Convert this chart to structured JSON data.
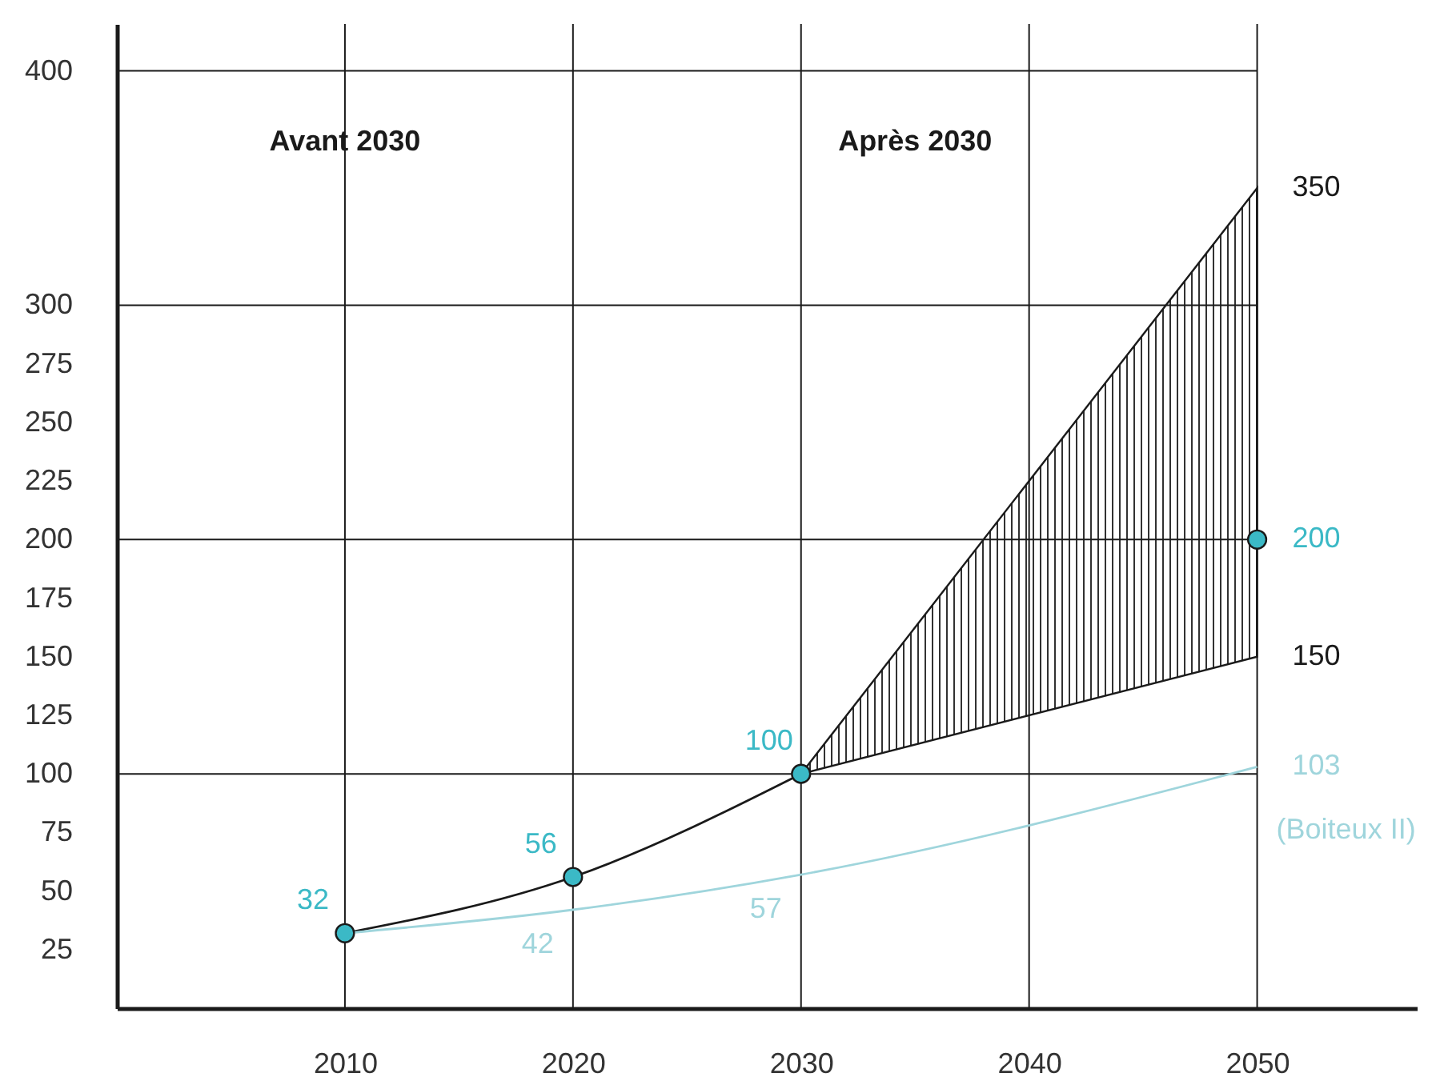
{
  "chart_data": {
    "type": "line",
    "xlim": [
      2000,
      2057
    ],
    "ylim": [
      0,
      420
    ],
    "xticks": [
      2010,
      2020,
      2030,
      2040,
      2050
    ],
    "yticks": [
      25,
      50,
      75,
      100,
      125,
      150,
      175,
      200,
      225,
      250,
      275,
      300,
      400
    ],
    "grid": false,
    "legend": false,
    "marker": "circle",
    "series": [
      {
        "color": "#1a1a1a",
        "marker": "none",
        "x": [
          2010,
          2020,
          2030
        ],
        "values": [
          32,
          56,
          100
        ]
      },
      {
        "type": "line",
        "name": "(Boiteux II)",
        "color": "#9fd5dc",
        "marker": "none",
        "x": [
          2010,
          2020,
          2030,
          2050
        ],
        "values": [
          32,
          42,
          57,
          103
        ],
        "value_labels": [
          null,
          "42",
          "57",
          "103"
        ]
      },
      {
        "type": "line",
        "color": "#3bb9c6",
        "marker": "circle",
        "x": [
          2030,
          2050
        ],
        "values": [
          null,
          200
        ],
        "value_labels": [
          null,
          "200"
        ],
        "lower": [
          100,
          150
        ],
        "upper": [
          100,
          350
        ]
      },
      {
        "type": "scatter",
        "color": "#3bb9c6",
        "x": [
          2010,
          2020,
          2030
        ],
        "values": [
          32,
          56,
          100
        ],
        "value_labels": [
          "32",
          "56",
          "100"
        ]
      }
    ],
    "ref_lines": [
      {
        "axis": "y",
        "value": 100
      },
      {
        "axis": "y",
        "value": 200
      },
      {
        "axis": "y",
        "value": 300
      },
      {
        "axis": "y",
        "value": 400
      },
      {
        "axis": "x",
        "value": 2010
      },
      {
        "axis": "x",
        "value": 2020
      },
      {
        "axis": "x",
        "value": 2030
      },
      {
        "axis": "x",
        "value": 2040
      },
      {
        "axis": "x",
        "value": 2050
      }
    ],
    "annotations": [
      "Avant 2030",
      "Après 2030",
      {
        "text": "350",
        "x": 2050,
        "y": 350
      },
      {
        "text": "150",
        "x": 2050,
        "y": 150
      }
    ]
  }
}
